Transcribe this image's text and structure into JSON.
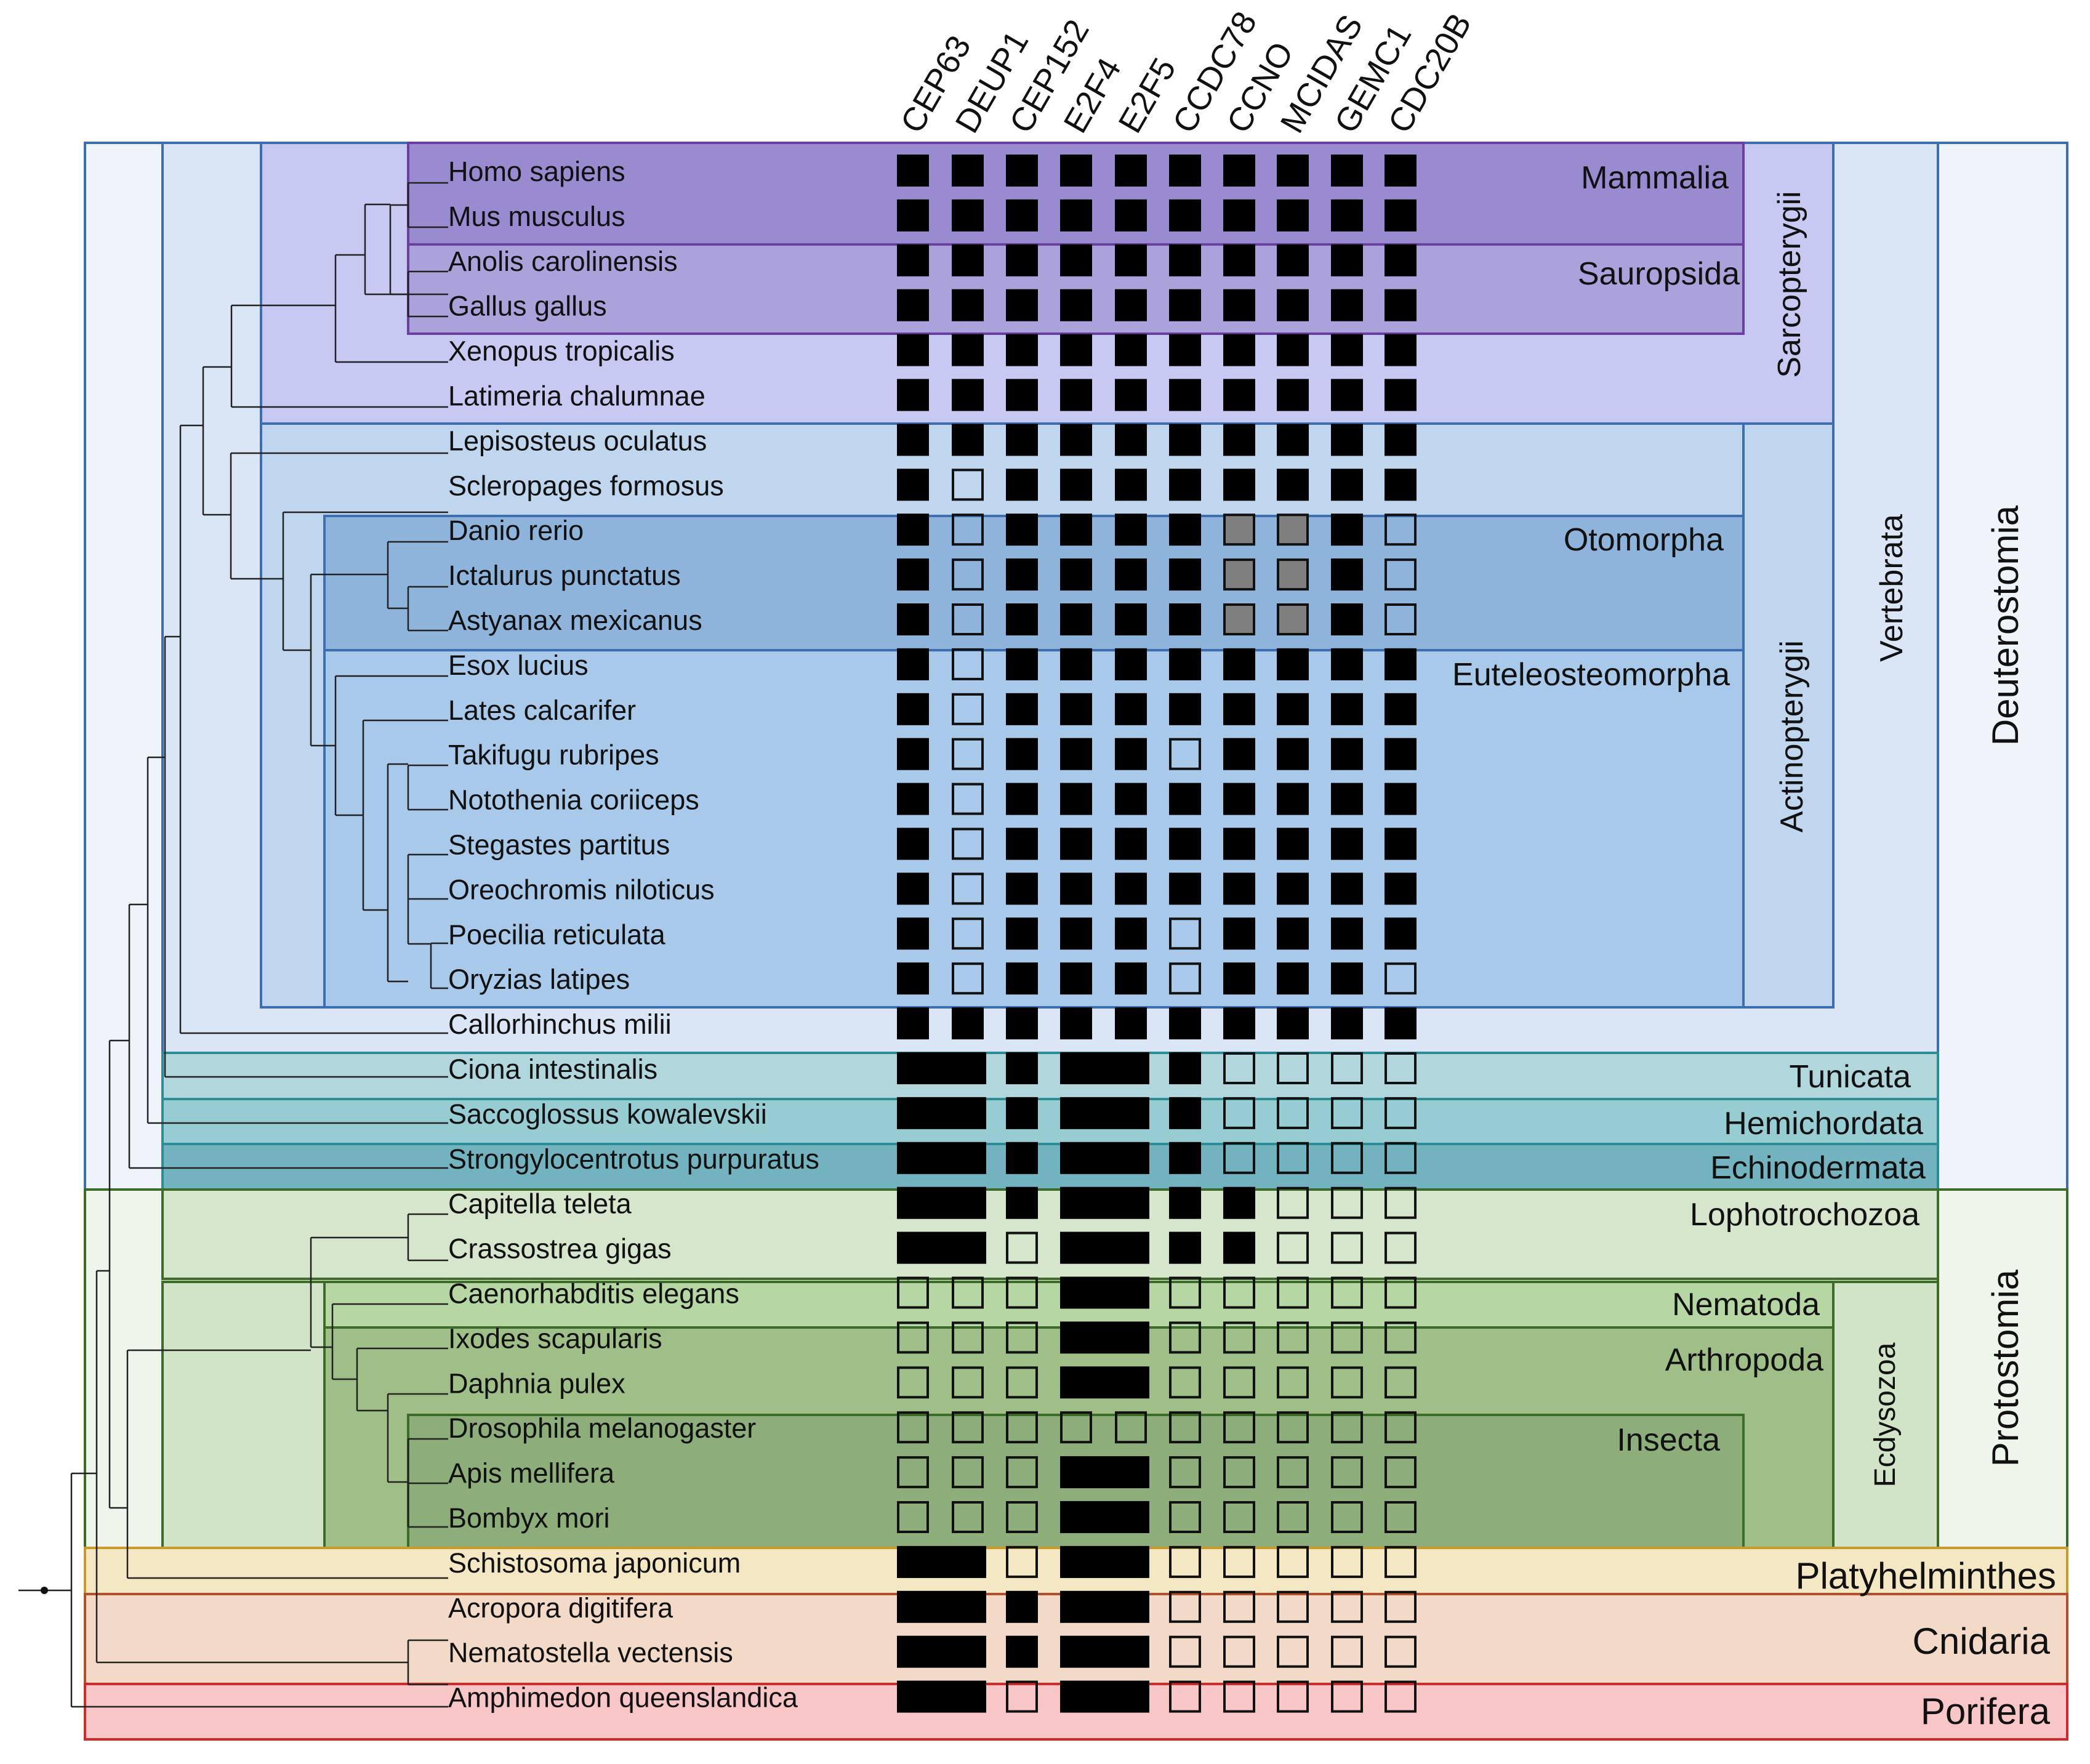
{
  "genes": [
    "CEP63",
    "DEUP1",
    "CEP152",
    "E2F4",
    "E2F5",
    "CCDC78",
    "CCNO",
    "MCIDAS",
    "GEMC1",
    "CDC20B"
  ],
  "species": [
    {
      "name": "Homo sapiens",
      "p": "BBBBBBBBBB"
    },
    {
      "name": "Mus musculus",
      "p": "BBBBBBBBBB"
    },
    {
      "name": "Anolis carolinensis",
      "p": "BBBBBBBBBB"
    },
    {
      "name": "Gallus gallus",
      "p": "BBBBBBBBBB"
    },
    {
      "name": "Xenopus tropicalis",
      "p": "BBBBBBBBBB"
    },
    {
      "name": "Latimeria chalumnae",
      "p": "BBBBBBBBBB"
    },
    {
      "name": "Lepisosteus oculatus",
      "p": "BBBBBBBBBB"
    },
    {
      "name": "Scleropages formosus",
      "p": "BOBBBBBBBB"
    },
    {
      "name": "Danio rerio",
      "p": "BOBBBBGGBO"
    },
    {
      "name": "Ictalurus punctatus",
      "p": "BOBBBBGGBO"
    },
    {
      "name": "Astyanax mexicanus",
      "p": "BOBBBBGGBO"
    },
    {
      "name": "Esox lucius",
      "p": "BOBBBBBBBB"
    },
    {
      "name": "Lates calcarifer",
      "p": "BOBBBBBBBB"
    },
    {
      "name": "Takifugu rubripes",
      "p": "BOBBBOBBBB"
    },
    {
      "name": "Notothenia coriiceps",
      "p": "BOBBBBBBBB"
    },
    {
      "name": "Stegastes partitus",
      "p": "BOBBBBBBBB"
    },
    {
      "name": "Oreochromis niloticus",
      "p": "BOBBBBBBBB"
    },
    {
      "name": "Poecilia reticulata",
      "p": "BOBBBOBBBB"
    },
    {
      "name": "Oryzias latipes",
      "p": "BOBBBOBBBO"
    },
    {
      "name": "Callorhinchus milii",
      "p": "BBBBBBBBBB"
    },
    {
      "name": "Ciona intestinalis",
      "p": "MMBMMBOOOO"
    },
    {
      "name": "Saccoglossus kowalevskii",
      "p": "MMBMMBOOOO"
    },
    {
      "name": "Strongylocentrotus purpuratus",
      "p": "MMBMMBOOOO"
    },
    {
      "name": "Capitella teleta",
      "p": "MMBMMBBOOO"
    },
    {
      "name": "Crassostrea gigas",
      "p": "MMOMMBBOOO"
    },
    {
      "name": "Caenorhabditis elegans",
      "p": "OOOMMOOOOO"
    },
    {
      "name": "Ixodes scapularis",
      "p": "OOOMMOOOOO"
    },
    {
      "name": "Daphnia pulex",
      "p": "OOOMMOOOOO"
    },
    {
      "name": "Drosophila melanogaster",
      "p": "OOOOOOOOOO"
    },
    {
      "name": "Apis mellifera",
      "p": "OOOMMOOOOO"
    },
    {
      "name": "Bombyx mori",
      "p": "OOOMMOOOOO"
    },
    {
      "name": "Schistosoma japonicum",
      "p": "MMOMMOOOOO"
    },
    {
      "name": "Acropora digitifera",
      "p": "MMBMMOOOOO"
    },
    {
      "name": "Nematostella vectensis",
      "p": "MMBMMOOOOO"
    },
    {
      "name": "Amphimedon queenslandica",
      "p": "MMOMMOOOOO"
    }
  ],
  "legend_states": {
    "B": "present",
    "O": "absent",
    "G": "partial",
    "M": "merged"
  },
  "groups": {
    "mammalia": "Mammalia",
    "sauropsida": "Sauropsida",
    "sarcopterygii": "Sarcopterygii",
    "otomorpha": "Otomorpha",
    "euteleosteomorpha": "Euteleosteomorpha",
    "actinopterygii": "Actinopterygii",
    "vertebrata": "Vertebrata",
    "tunicata": "Tunicata",
    "hemichordata": "Hemichordata",
    "echinodermata": "Echinodermata",
    "deuterostomia": "Deuterostomia",
    "lophotrochozoa": "Lophotrochozoa",
    "nematoda": "Nematoda",
    "arthropoda": "Arthropoda",
    "insecta": "Insecta",
    "ecdysozoa": "Ecdysozoa",
    "protostomia": "Protostomia",
    "platyhelminthes": "Platyhelminthes",
    "cnidaria": "Cnidaria",
    "porifera": "Porifera"
  },
  "colors": {
    "mammalia": "#9a8ad0",
    "sauropsida": "#aba2dc",
    "sarcopterygii": "#c8c9f3",
    "otomorpha": "#8fb4dc",
    "euteleosteomorpha": "#a9c9ea",
    "actinopterygii": "#c0d6ef",
    "vertebrata": "#dae6f5",
    "deuterostomia": "#eff4fb",
    "tunicata": "#b1d6dc",
    "hemichordata": "#97ccd3",
    "echinodermata": "#72b3bf",
    "protostomia": "#eef5ea",
    "lophotrochozoa": "#d5e6cc",
    "ecdysozoa": "#d2e4c8",
    "nematoda": "#b6d7a4",
    "arthropoda": "#9fbe88",
    "insecta": "#8dad7a",
    "platyhelminthes": "#f4e7c4",
    "cnidaria": "#f2d9c8",
    "porifera": "#f8c6c6",
    "blue_border": "#3d6fb0",
    "purple_border": "#6a3fa0",
    "teal_border": "#2b8e96",
    "green_border": "#3d6b2a",
    "gold_border": "#c79a2a",
    "brown_border": "#b5502a",
    "red_border": "#d62828",
    "partial_fill": "#7f7f7f"
  }
}
